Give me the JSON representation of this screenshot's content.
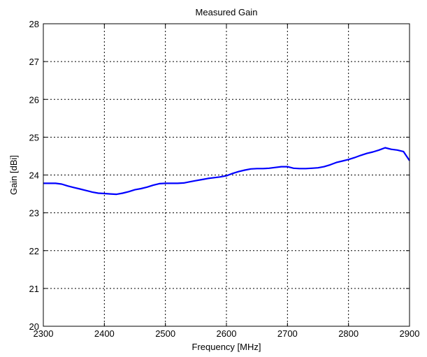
{
  "chart_data": {
    "type": "line",
    "title": "Measured Gain",
    "xlabel": "Frequency [MHz]",
    "ylabel": "Gain [dBi]",
    "xlim": [
      2300,
      2900
    ],
    "ylim": [
      20,
      28
    ],
    "xticks": [
      2300,
      2400,
      2500,
      2600,
      2700,
      2800,
      2900
    ],
    "yticks": [
      20,
      21,
      22,
      23,
      24,
      25,
      26,
      27,
      28
    ],
    "grid": true,
    "series": [
      {
        "color": "#0000ff",
        "x": [
          2300,
          2310,
          2320,
          2330,
          2340,
          2350,
          2360,
          2370,
          2380,
          2390,
          2400,
          2410,
          2420,
          2430,
          2440,
          2450,
          2460,
          2470,
          2480,
          2490,
          2500,
          2510,
          2520,
          2530,
          2540,
          2550,
          2560,
          2570,
          2580,
          2590,
          2600,
          2610,
          2620,
          2630,
          2640,
          2650,
          2660,
          2670,
          2680,
          2690,
          2700,
          2710,
          2720,
          2730,
          2740,
          2750,
          2760,
          2770,
          2780,
          2790,
          2800,
          2810,
          2820,
          2830,
          2840,
          2850,
          2860,
          2870,
          2880,
          2890,
          2900
        ],
        "y": [
          23.78,
          23.78,
          23.78,
          23.76,
          23.71,
          23.67,
          23.63,
          23.59,
          23.55,
          23.52,
          23.51,
          23.5,
          23.49,
          23.52,
          23.56,
          23.61,
          23.64,
          23.68,
          23.73,
          23.77,
          23.78,
          23.78,
          23.78,
          23.79,
          23.82,
          23.85,
          23.88,
          23.91,
          23.93,
          23.95,
          23.98,
          24.04,
          24.09,
          24.13,
          24.16,
          24.17,
          24.17,
          24.18,
          24.2,
          24.22,
          24.22,
          24.18,
          24.17,
          24.17,
          24.18,
          24.19,
          24.22,
          24.27,
          24.33,
          24.37,
          24.41,
          24.46,
          24.52,
          24.57,
          24.61,
          24.66,
          24.72,
          24.68,
          24.66,
          24.62,
          24.38
        ]
      }
    ]
  }
}
